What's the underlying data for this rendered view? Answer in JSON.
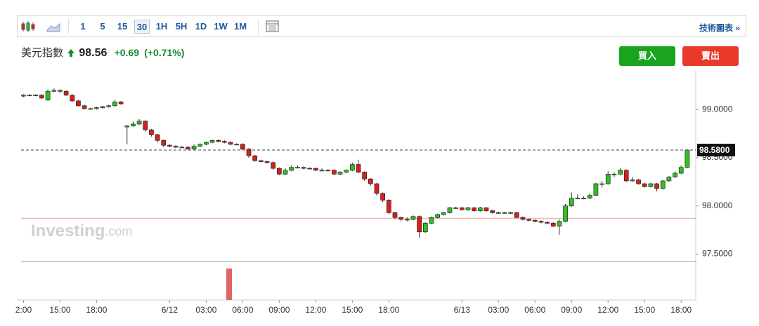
{
  "toolbar": {
    "intervals": [
      "1",
      "5",
      "15",
      "30",
      "1H",
      "5H",
      "1D",
      "1W",
      "1M"
    ],
    "active_interval": 3,
    "link": "技術圖表 »"
  },
  "quote": {
    "name": "美元指數",
    "price": "98.56",
    "change": "+0.69",
    "change_pct": "(+0.71%)"
  },
  "buttons": {
    "buy": "買入",
    "sell": "賣出"
  },
  "watermark": {
    "brand": "Investing",
    "suffix": ".com"
  },
  "chart_data": {
    "type": "candlestick",
    "up_color": "#2cc31f",
    "down_color": "#d91e1e",
    "xlim": [
      11.8,
      67.2
    ],
    "ylim": [
      97.43,
      99.41
    ],
    "xticks": [
      {
        "value": 12,
        "label": "2:00"
      },
      {
        "value": 15,
        "label": "15:00"
      },
      {
        "value": 18,
        "label": "18:00"
      },
      {
        "value": 24,
        "label": "6/12"
      },
      {
        "value": 27,
        "label": "03:00"
      },
      {
        "value": 30,
        "label": "06:00"
      },
      {
        "value": 33,
        "label": "09:00"
      },
      {
        "value": 36,
        "label": "12:00"
      },
      {
        "value": 39,
        "label": "15:00"
      },
      {
        "value": 42,
        "label": "18:00"
      },
      {
        "value": 48,
        "label": "6/13"
      },
      {
        "value": 51,
        "label": "03:00"
      },
      {
        "value": 54,
        "label": "06:00"
      },
      {
        "value": 57,
        "label": "09:00"
      },
      {
        "value": 60,
        "label": "12:00"
      },
      {
        "value": 63,
        "label": "15:00"
      },
      {
        "value": 66,
        "label": "18:00"
      }
    ],
    "yticks": [
      {
        "value": 99,
        "label": "99.0000"
      },
      {
        "value": 98.5,
        "label": "98.5000"
      },
      {
        "value": 98,
        "label": "98.0000"
      },
      {
        "value": 97.5,
        "label": "97.5000"
      }
    ],
    "last_price": {
      "value": 98.58,
      "label": "98.5800"
    },
    "reference_line": 97.87,
    "x": [
      12,
      12.5,
      13,
      13.5,
      14,
      14.5,
      15,
      15.5,
      16,
      16.5,
      17,
      17.5,
      18,
      18.5,
      19,
      19.5,
      20,
      20.5,
      21,
      21.5,
      22,
      22.5,
      23,
      23.5,
      24,
      24.5,
      25,
      25.5,
      26,
      26.5,
      27,
      27.5,
      28,
      28.5,
      29,
      29.5,
      30,
      30.5,
      31,
      31.5,
      32,
      32.5,
      33,
      33.5,
      34,
      34.5,
      35,
      35.5,
      36,
      36.5,
      37,
      37.5,
      38,
      38.5,
      39,
      39.5,
      40,
      40.5,
      41,
      41.5,
      42,
      42.5,
      43,
      43.5,
      44,
      44.5,
      45,
      45.5,
      46,
      46.5,
      47,
      47.5,
      48,
      48.5,
      49,
      49.5,
      50,
      50.5,
      51,
      51.5,
      52,
      52.5,
      53,
      53.5,
      54,
      54.5,
      55,
      55.5,
      56,
      56.5,
      57,
      57.5,
      58,
      58.5,
      59,
      59.5,
      60,
      60.5,
      61,
      61.5,
      62,
      62.5,
      63,
      63.5,
      64,
      64.5,
      65,
      65.5,
      66,
      66.5
    ],
    "open": [
      99.14,
      99.15,
      99.15,
      99.15,
      99.1,
      99.19,
      99.2,
      99.19,
      99.15,
      99.09,
      99.04,
      99.01,
      99.01,
      99.02,
      99.03,
      99.04,
      99.08,
      98.82,
      98.83,
      98.85,
      98.88,
      98.79,
      98.74,
      98.68,
      98.63,
      98.62,
      98.61,
      98.61,
      98.59,
      98.62,
      98.64,
      98.66,
      98.68,
      98.67,
      98.66,
      98.64,
      98.64,
      98.59,
      98.52,
      98.47,
      98.46,
      98.45,
      98.39,
      98.33,
      98.37,
      98.4,
      98.4,
      98.39,
      98.39,
      98.37,
      98.37,
      98.37,
      98.33,
      98.35,
      98.37,
      98.43,
      98.35,
      98.28,
      98.23,
      98.13,
      98.06,
      97.93,
      97.88,
      97.86,
      97.86,
      97.89,
      97.73,
      97.82,
      97.88,
      97.91,
      97.93,
      97.98,
      97.98,
      97.96,
      97.98,
      97.95,
      97.98,
      97.95,
      97.93,
      97.93,
      97.93,
      97.93,
      97.88,
      97.86,
      97.85,
      97.84,
      97.83,
      97.82,
      97.79,
      97.84,
      98.0,
      98.08,
      98.08,
      98.08,
      98.11,
      98.23,
      98.23,
      98.33,
      98.33,
      98.37,
      98.26,
      98.27,
      98.23,
      98.2,
      98.23,
      98.18,
      98.26,
      98.3,
      98.34,
      98.4
    ],
    "high": [
      99.16,
      99.16,
      99.16,
      99.16,
      99.21,
      99.22,
      99.21,
      99.2,
      99.16,
      99.1,
      99.05,
      99.02,
      99.03,
      99.04,
      99.05,
      99.1,
      99.09,
      98.84,
      98.88,
      98.9,
      98.89,
      98.8,
      98.75,
      98.69,
      98.64,
      98.63,
      98.62,
      98.62,
      98.64,
      98.65,
      98.67,
      98.69,
      98.69,
      98.68,
      98.67,
      98.65,
      98.65,
      98.6,
      98.53,
      98.48,
      98.47,
      98.46,
      98.4,
      98.39,
      98.42,
      98.42,
      98.41,
      98.4,
      98.4,
      98.39,
      98.38,
      98.38,
      98.36,
      98.38,
      98.45,
      98.48,
      98.36,
      98.29,
      98.24,
      98.14,
      98.07,
      97.94,
      97.89,
      97.88,
      97.9,
      97.9,
      97.83,
      97.89,
      97.92,
      97.94,
      97.99,
      97.99,
      97.99,
      97.99,
      97.99,
      97.99,
      97.99,
      97.96,
      97.94,
      97.94,
      97.94,
      97.94,
      97.89,
      97.87,
      97.86,
      97.85,
      97.84,
      97.83,
      97.86,
      98.02,
      98.14,
      98.12,
      98.1,
      98.13,
      98.24,
      98.26,
      98.36,
      98.35,
      98.39,
      98.38,
      98.3,
      98.28,
      98.24,
      98.24,
      98.24,
      98.27,
      98.31,
      98.36,
      98.42,
      98.59
    ],
    "low": [
      99.13,
      99.14,
      99.14,
      99.11,
      99.09,
      99.18,
      99.17,
      99.14,
      99.08,
      99.03,
      99.0,
      99.0,
      99.0,
      99.01,
      99.02,
      99.03,
      99.05,
      98.64,
      98.82,
      98.84,
      98.77,
      98.72,
      98.66,
      98.61,
      98.61,
      98.6,
      98.6,
      98.58,
      98.58,
      98.61,
      98.63,
      98.65,
      98.66,
      98.65,
      98.63,
      98.63,
      98.58,
      98.5,
      98.46,
      98.45,
      98.44,
      98.37,
      98.32,
      98.32,
      98.36,
      98.39,
      98.38,
      98.38,
      98.36,
      98.36,
      98.36,
      98.32,
      98.32,
      98.34,
      98.36,
      98.34,
      98.26,
      98.21,
      98.11,
      98.04,
      97.91,
      97.86,
      97.84,
      97.84,
      97.85,
      97.67,
      97.72,
      97.81,
      97.87,
      97.9,
      97.92,
      97.97,
      97.95,
      97.95,
      97.94,
      97.94,
      97.94,
      97.92,
      97.92,
      97.92,
      97.92,
      97.87,
      97.85,
      97.84,
      97.83,
      97.82,
      97.81,
      97.78,
      97.7,
      97.83,
      97.99,
      98.07,
      98.07,
      98.07,
      98.1,
      98.19,
      98.22,
      98.3,
      98.32,
      98.25,
      98.25,
      98.22,
      98.19,
      98.19,
      98.15,
      98.17,
      98.25,
      98.29,
      98.33,
      98.39
    ],
    "close": [
      99.15,
      99.15,
      99.15,
      99.12,
      99.19,
      99.2,
      99.19,
      99.15,
      99.09,
      99.04,
      99.01,
      99.01,
      99.02,
      99.03,
      99.04,
      99.08,
      99.06,
      98.83,
      98.85,
      98.88,
      98.79,
      98.74,
      98.68,
      98.63,
      98.62,
      98.61,
      98.61,
      98.59,
      98.62,
      98.64,
      98.66,
      98.68,
      98.67,
      98.66,
      98.64,
      98.64,
      98.59,
      98.52,
      98.47,
      98.46,
      98.45,
      98.39,
      98.33,
      98.37,
      98.4,
      98.4,
      98.39,
      98.39,
      98.37,
      98.37,
      98.37,
      98.33,
      98.35,
      98.37,
      98.43,
      98.35,
      98.28,
      98.23,
      98.13,
      98.06,
      97.93,
      97.88,
      97.86,
      97.86,
      97.89,
      97.73,
      97.82,
      97.88,
      97.91,
      97.93,
      97.98,
      97.98,
      97.96,
      97.98,
      97.95,
      97.98,
      97.95,
      97.93,
      97.93,
      97.93,
      97.93,
      97.88,
      97.86,
      97.85,
      97.84,
      97.83,
      97.82,
      97.79,
      97.84,
      98.0,
      98.08,
      98.08,
      98.08,
      98.11,
      98.23,
      98.23,
      98.33,
      98.33,
      98.37,
      98.26,
      98.27,
      98.23,
      98.2,
      98.23,
      98.18,
      98.26,
      98.3,
      98.34,
      98.4,
      98.58
    ]
  }
}
